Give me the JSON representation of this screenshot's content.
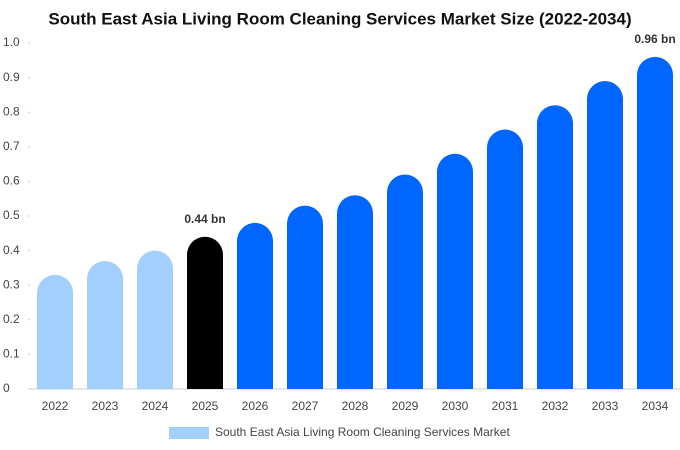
{
  "chart_data": {
    "type": "bar",
    "title": "South East Asia Living Room Cleaning Services Market Size (2022-2034)",
    "categories": [
      "2022",
      "2023",
      "2024",
      "2025",
      "2026",
      "2027",
      "2028",
      "2029",
      "2030",
      "2031",
      "2032",
      "2033",
      "2034"
    ],
    "series": [
      {
        "name": "South East Asia Living Room Cleaning Services Market",
        "color": "#a3cfff",
        "colors": [
          "#a3cfff",
          "#a3cfff",
          "#a3cfff",
          "#000000",
          "#0066ff",
          "#0066ff",
          "#0066ff",
          "#0066ff",
          "#0066ff",
          "#0066ff",
          "#0066ff",
          "#0066ff",
          "#0066ff"
        ],
        "values": [
          0.33,
          0.37,
          0.4,
          0.44,
          0.48,
          0.53,
          0.56,
          0.62,
          0.68,
          0.75,
          0.82,
          0.89,
          0.96
        ],
        "value_labels": [
          null,
          null,
          null,
          "0.44 bn",
          null,
          null,
          null,
          null,
          null,
          null,
          null,
          null,
          "0.96 bn"
        ]
      }
    ],
    "ylim": [
      0,
      1
    ],
    "yticks": [
      0,
      0.1,
      0.2,
      0.3,
      0.4,
      0.5,
      0.6,
      0.7,
      0.8,
      0.9,
      {
        "value": 1,
        "label": "1.0"
      }
    ]
  }
}
